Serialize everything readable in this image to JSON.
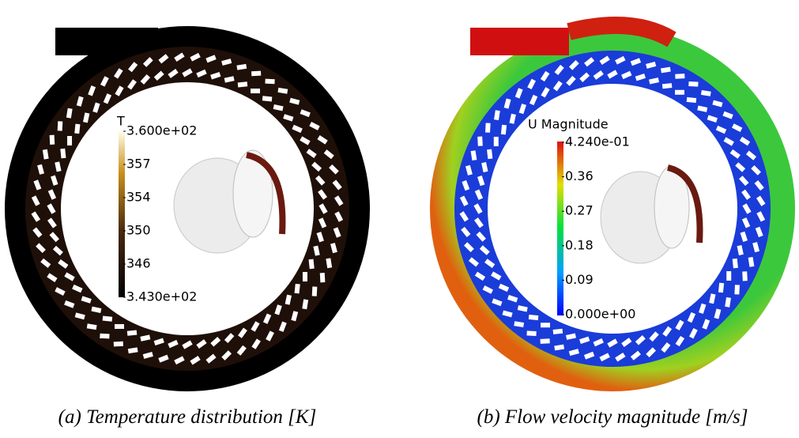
{
  "panels": [
    {
      "colorbar": {
        "title": "T",
        "ticks": [
          "3.600e+02",
          "357",
          "354",
          "350",
          "346",
          "3.430e+02"
        ]
      },
      "caption": "(a) Temperature distribution [K]"
    },
    {
      "colorbar": {
        "title": "U Magnitude",
        "ticks": [
          "4.240e-01",
          "0.36",
          "0.27",
          "0.18",
          "0.09",
          "0.000e+00"
        ]
      },
      "caption": "(b) Flow velocity magnitude [m/s]"
    }
  ]
}
